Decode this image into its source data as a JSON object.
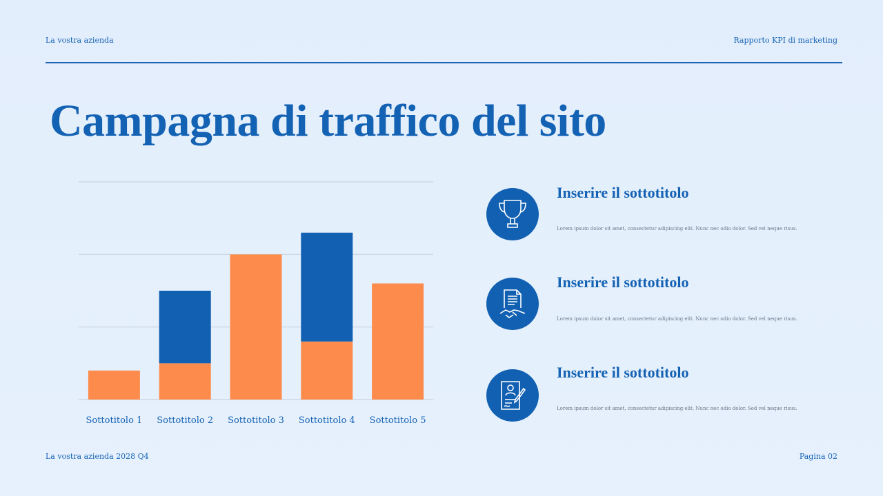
{
  "header": {
    "company": "La vostra azienda",
    "report": "Rapporto KPI di marketing"
  },
  "title": "Campagna di traffico del sito",
  "colors": {
    "primary": "#1160b2",
    "accent": "#fd8c4c",
    "background": "#e4effc"
  },
  "chart_data": {
    "type": "bar",
    "stacked": true,
    "categories": [
      "Sottotitolo 1",
      "Sottotitolo 2",
      "Sottotitolo 3",
      "Sottotitolo 4",
      "Sottotitolo 5"
    ],
    "series": [
      {
        "color": "#fd8c4c",
        "values": [
          0.4,
          0.5,
          2.0,
          0.8,
          1.6
        ]
      },
      {
        "color": "#1160b2",
        "values": [
          0,
          1.0,
          0,
          1.5,
          0
        ]
      }
    ],
    "ylim": [
      0,
      3
    ],
    "gridlines": [
      0,
      1,
      2,
      3
    ],
    "grid": true,
    "title": "",
    "xlabel": "",
    "ylabel": ""
  },
  "items": [
    {
      "icon": "trophy-icon",
      "subtitle": "Inserire il sottotitolo",
      "text": "Lorem ipsum dolor sit amet, consectetur adipiscing elit. Nunc nec odio dolor. Sed vel neque risus."
    },
    {
      "icon": "contract-handshake-icon",
      "subtitle": "Inserire il sottotitolo",
      "text": "Lorem ipsum dolor sit amet, consectetur adipiscing elit. Nunc nec odio dolor. Sed vel neque risus."
    },
    {
      "icon": "signed-document-icon",
      "subtitle": "Inserire il sottotitolo",
      "text": "Lorem ipsum dolor sit amet, consectetur adipiscing elit. Nunc nec odio dolor. Sed vel neque risus."
    }
  ],
  "footer": {
    "left": "La vostra azienda 2028 Q4",
    "right": "Pagina 02"
  }
}
